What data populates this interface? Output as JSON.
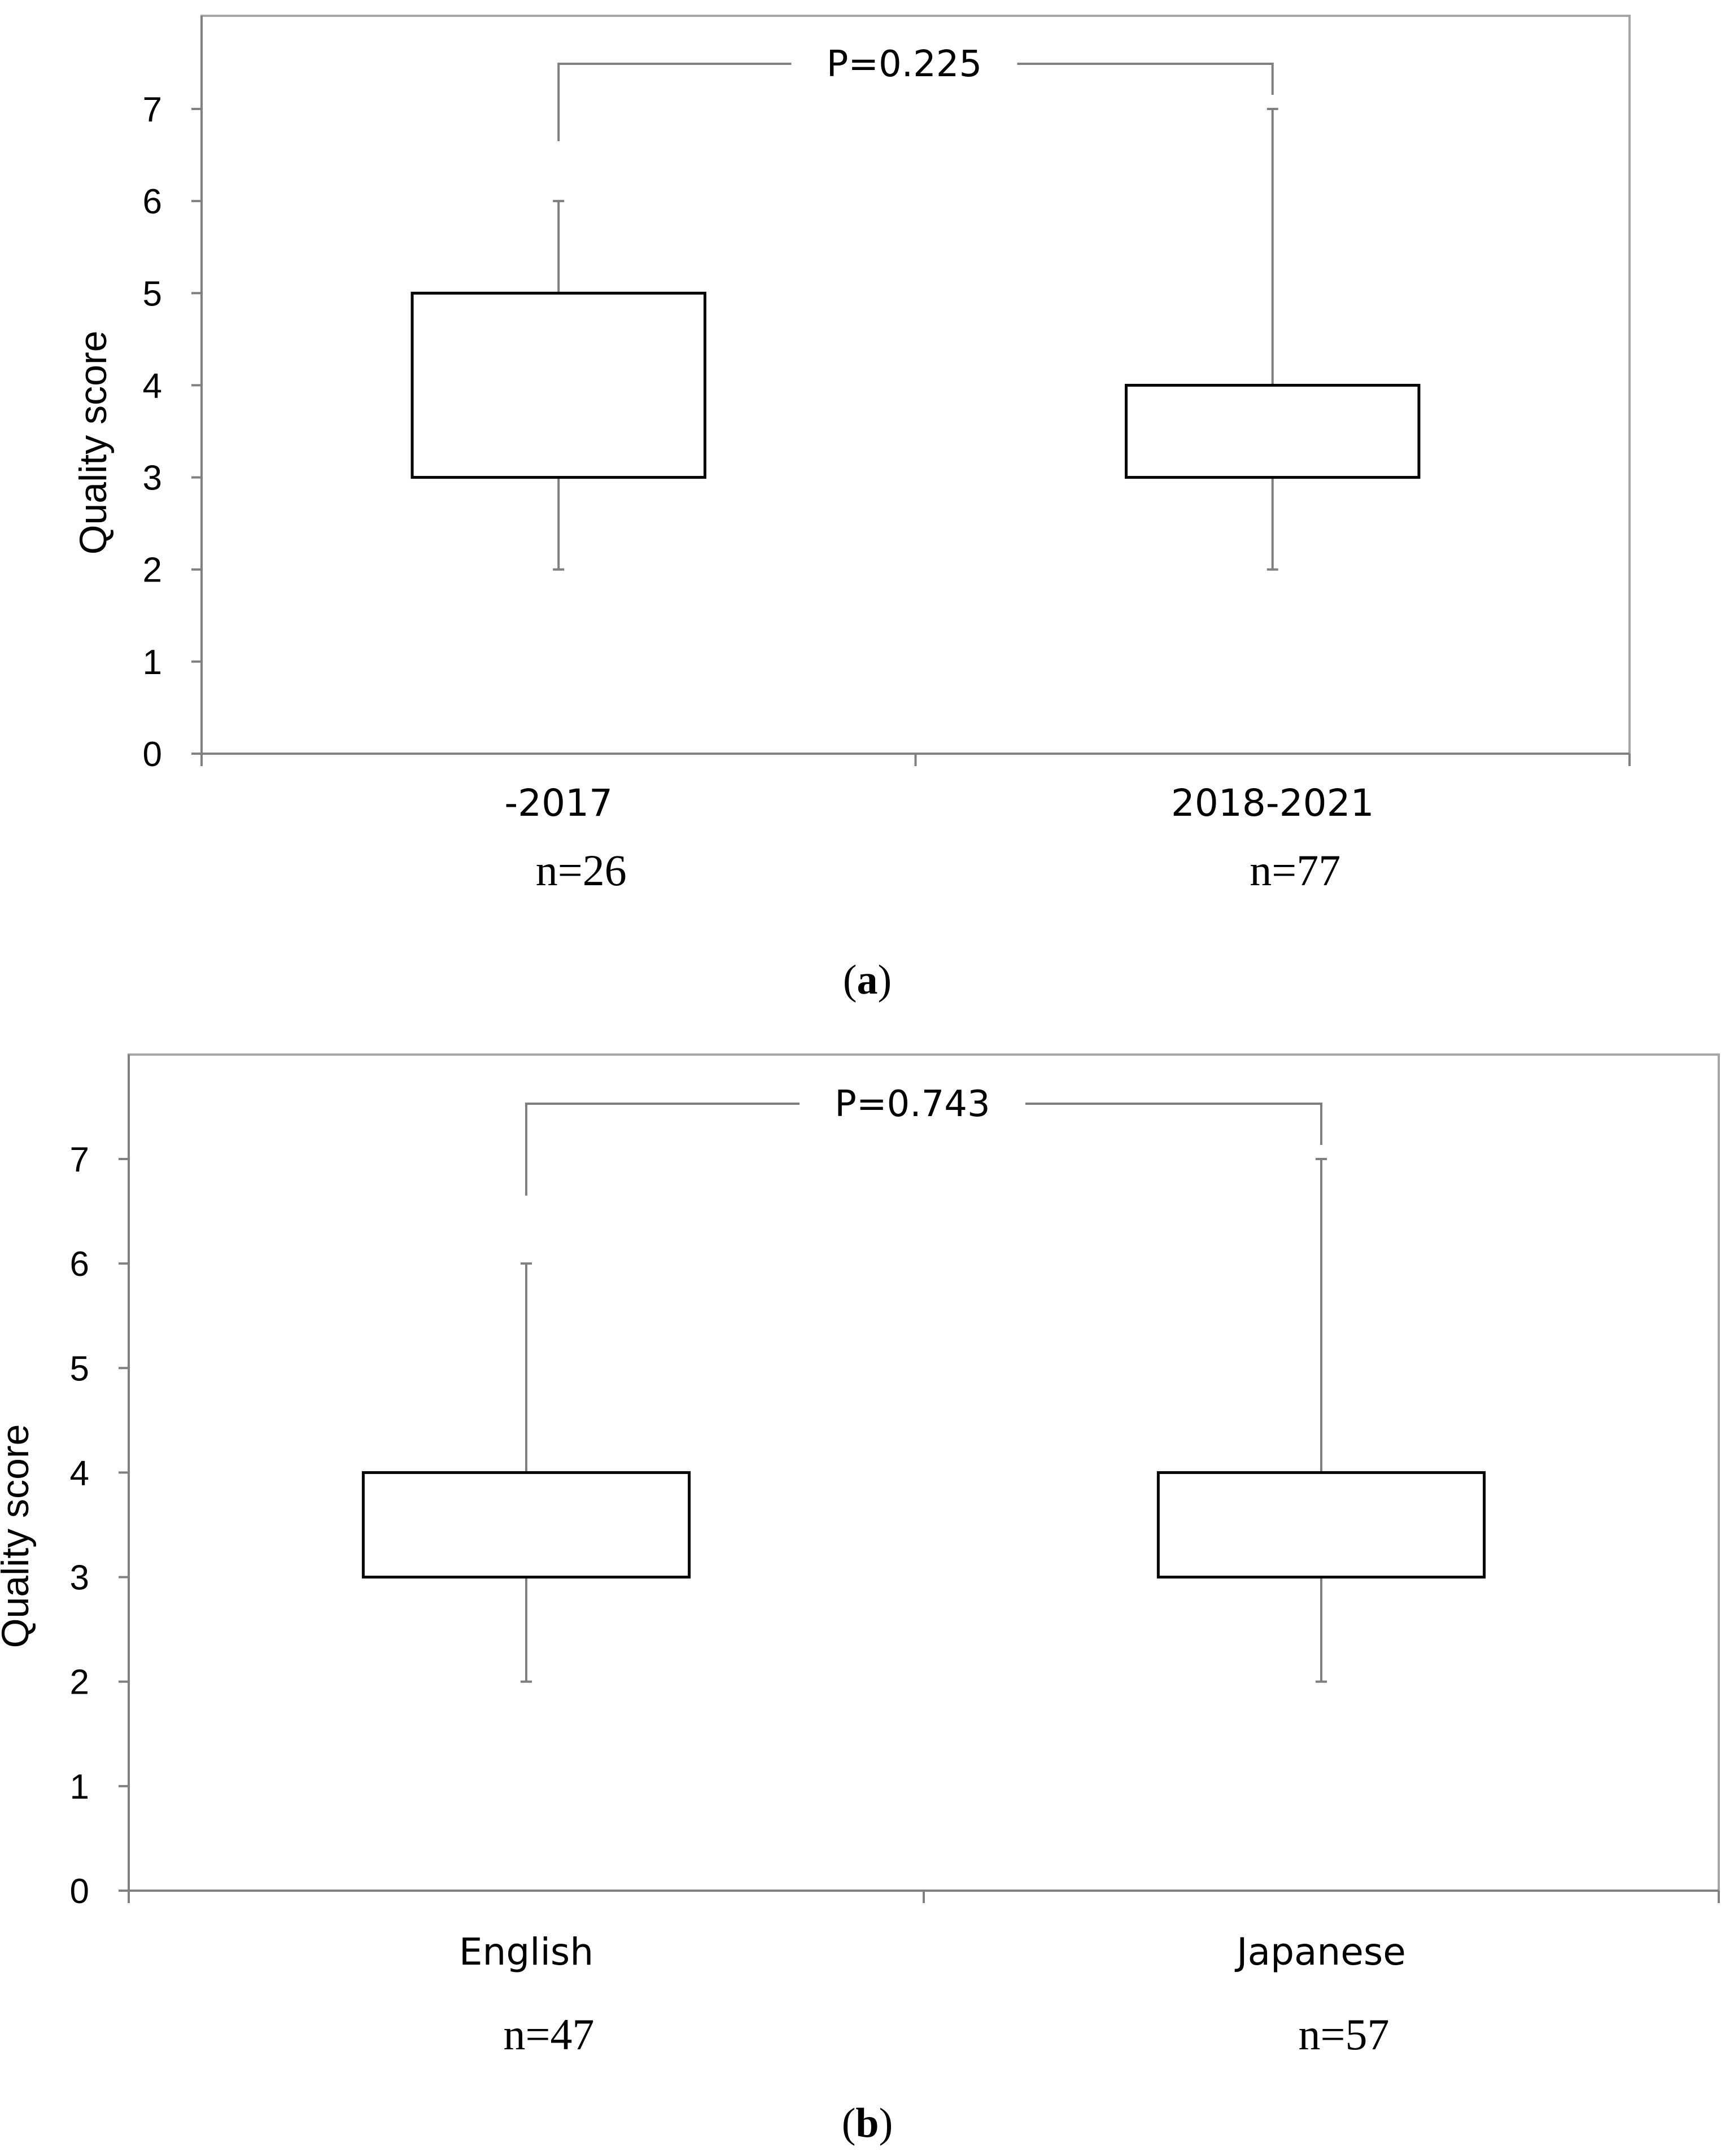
{
  "chart_data": [
    {
      "type": "box",
      "panel_label": "a",
      "ylabel": "Quality score",
      "ylim": [
        0,
        7
      ],
      "yticks": [
        0,
        1,
        2,
        3,
        4,
        5,
        6,
        7
      ],
      "grid": false,
      "categories": [
        "-2017",
        "2018-2021"
      ],
      "sample_sizes": [
        "n=26",
        "n=77"
      ],
      "boxes": [
        {
          "category": "-2017",
          "min": 2,
          "q1": 3,
          "q3": 5,
          "max": 6
        },
        {
          "category": "2018-2021",
          "min": 2,
          "q1": 3,
          "q3": 4,
          "max": 7
        }
      ],
      "comparison": {
        "label": "P=0.225",
        "between": [
          "-2017",
          "2018-2021"
        ]
      }
    },
    {
      "type": "box",
      "panel_label": "b",
      "ylabel": "Quality score",
      "ylim": [
        0,
        7
      ],
      "yticks": [
        0,
        1,
        2,
        3,
        4,
        5,
        6,
        7
      ],
      "grid": false,
      "categories": [
        "English",
        "Japanese"
      ],
      "sample_sizes": [
        "n=47",
        "n=57"
      ],
      "boxes": [
        {
          "category": "English",
          "min": 2,
          "q1": 3,
          "q3": 4,
          "max": 6
        },
        {
          "category": "Japanese",
          "min": 2,
          "q1": 3,
          "q3": 4,
          "max": 7
        }
      ],
      "comparison": {
        "label": "P=0.743",
        "between": [
          "English",
          "Japanese"
        ]
      }
    }
  ],
  "captions": [
    "(a)",
    "(b)"
  ]
}
